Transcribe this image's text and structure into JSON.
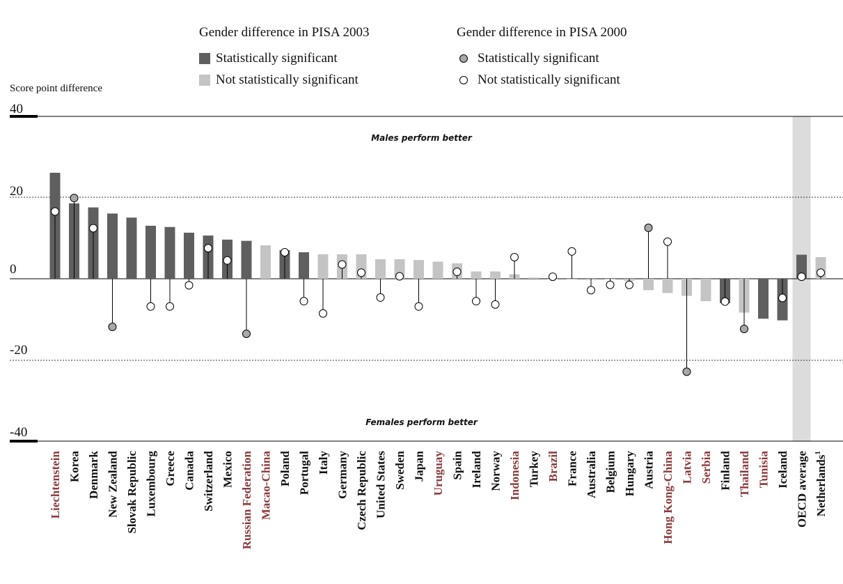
{
  "legend": {
    "heading_2003": "Gender difference in PISA 2003",
    "heading_2000": "Gender difference in PISA 2000",
    "sig_2003": "Statistically significant",
    "nonsig_2003": "Not statistically significant",
    "sig_2000": "Statistically significant",
    "nonsig_2000": "Not statistically significant"
  },
  "colors": {
    "significant_bar": "#5f5f5f",
    "nonsignificant_bar": "#c4c4c4",
    "significant_dot": "#a8a8a8",
    "nonsignificant_dot": "#ffffff",
    "partner_label": "#8b3a3a",
    "oecd_label": "#111111",
    "highlight_band": "#dcdcdc"
  },
  "chart_data": {
    "type": "bar",
    "ylabel": "Score point difference",
    "ylim": [
      -40,
      40
    ],
    "yticks": [
      40,
      20,
      0,
      -20,
      -40
    ],
    "top_annotation": "Males perform better",
    "bottom_annotation": "Females perform better",
    "grid": "dotted at 20 and -20",
    "categories": [
      "Liechtenstein",
      "Korea",
      "Denmark",
      "New Zealand",
      "Slovak Republic",
      "Luxembourg",
      "Greece",
      "Canada",
      "Switzerland",
      "Mexico",
      "Russian Federation",
      "Macao-China",
      "Poland",
      "Portugal",
      "Italy",
      "Germany",
      "Czech Republic",
      "United States",
      "Sweden",
      "Japan",
      "Uruguay",
      "Spain",
      "Ireland",
      "Norway",
      "Indonesia",
      "Turkey",
      "Brazil",
      "France",
      "Australia",
      "Belgium",
      "Hungary",
      "Austria",
      "Hong Kong-China",
      "Latvia",
      "Serbia",
      "Finland",
      "Thailand",
      "Tunisia",
      "Iceland",
      "OECD average",
      "Netherlands"
    ],
    "partner_countries": [
      "Liechtenstein",
      "Russian Federation",
      "Macao-China",
      "Uruguay",
      "Indonesia",
      "Brazil",
      "Hong Kong-China",
      "Latvia",
      "Serbia",
      "Thailand",
      "Tunisia"
    ],
    "highlighted_category": "OECD average",
    "superscripts": {
      "Netherlands": "1"
    },
    "series": [
      {
        "name": "Gender difference in PISA 2003",
        "values": [
          26,
          18.5,
          17.5,
          16,
          15,
          13,
          12.7,
          11.3,
          10.6,
          9.6,
          9.3,
          8.2,
          7,
          6.5,
          6,
          6,
          6,
          4.8,
          4.8,
          4.6,
          4.2,
          3.8,
          1.8,
          1.8,
          1.1,
          0.3,
          0,
          -0.2,
          -0.3,
          0,
          -0.5,
          -2.8,
          -3.5,
          -4.2,
          -5.5,
          -6,
          -8.3,
          -9.8,
          -10.2,
          5.9,
          5.3
        ],
        "significant": [
          true,
          true,
          true,
          true,
          true,
          true,
          true,
          true,
          true,
          true,
          true,
          false,
          true,
          true,
          false,
          false,
          false,
          false,
          false,
          false,
          false,
          false,
          false,
          false,
          false,
          false,
          false,
          false,
          false,
          false,
          false,
          false,
          false,
          false,
          false,
          true,
          false,
          true,
          true,
          true,
          false
        ]
      },
      {
        "name": "Gender difference in PISA 2000",
        "values": [
          16.5,
          19.8,
          12.4,
          -11.8,
          null,
          -6.8,
          -6.8,
          -1.6,
          7.5,
          4.5,
          -13.5,
          null,
          6.5,
          -5.5,
          -8.5,
          3.5,
          1.5,
          -4.6,
          0.6,
          -6.8,
          null,
          1.7,
          -5.5,
          -6.3,
          5.3,
          null,
          0.5,
          6.7,
          -2.8,
          -1.5,
          -1.5,
          12.5,
          9.1,
          -22.8,
          null,
          -5.6,
          -12.3,
          null,
          -4.7,
          0.5,
          1.5
        ],
        "significant": [
          false,
          true,
          false,
          true,
          false,
          false,
          false,
          false,
          false,
          false,
          true,
          false,
          false,
          false,
          false,
          false,
          false,
          false,
          false,
          false,
          false,
          false,
          false,
          false,
          false,
          false,
          false,
          false,
          false,
          false,
          false,
          true,
          false,
          true,
          false,
          false,
          true,
          false,
          false,
          false,
          false
        ]
      }
    ]
  }
}
